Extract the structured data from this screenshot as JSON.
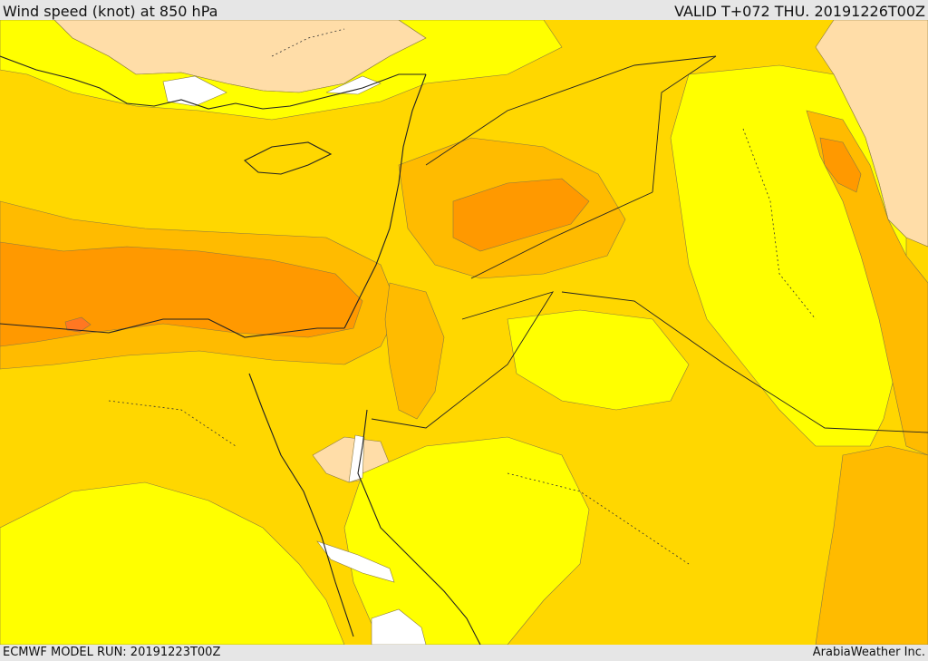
{
  "header": {
    "title": "Wind speed (knot) at 850 hPa",
    "valid_time": "VALID T+072 THU. 20191226T00Z"
  },
  "footer": {
    "model_run": "ECMWF MODEL RUN: 20191223T00Z",
    "credit": "ArabiaWeather Inc."
  },
  "colors": {
    "beige": "#ffdda8",
    "light_yellow": "#ffff00",
    "gold": "#ffd700",
    "amber": "#ffbb00",
    "orange": "#ff9900",
    "dark_orange": "#ff7722",
    "white": "#ffffff",
    "outline": "#222222"
  }
}
